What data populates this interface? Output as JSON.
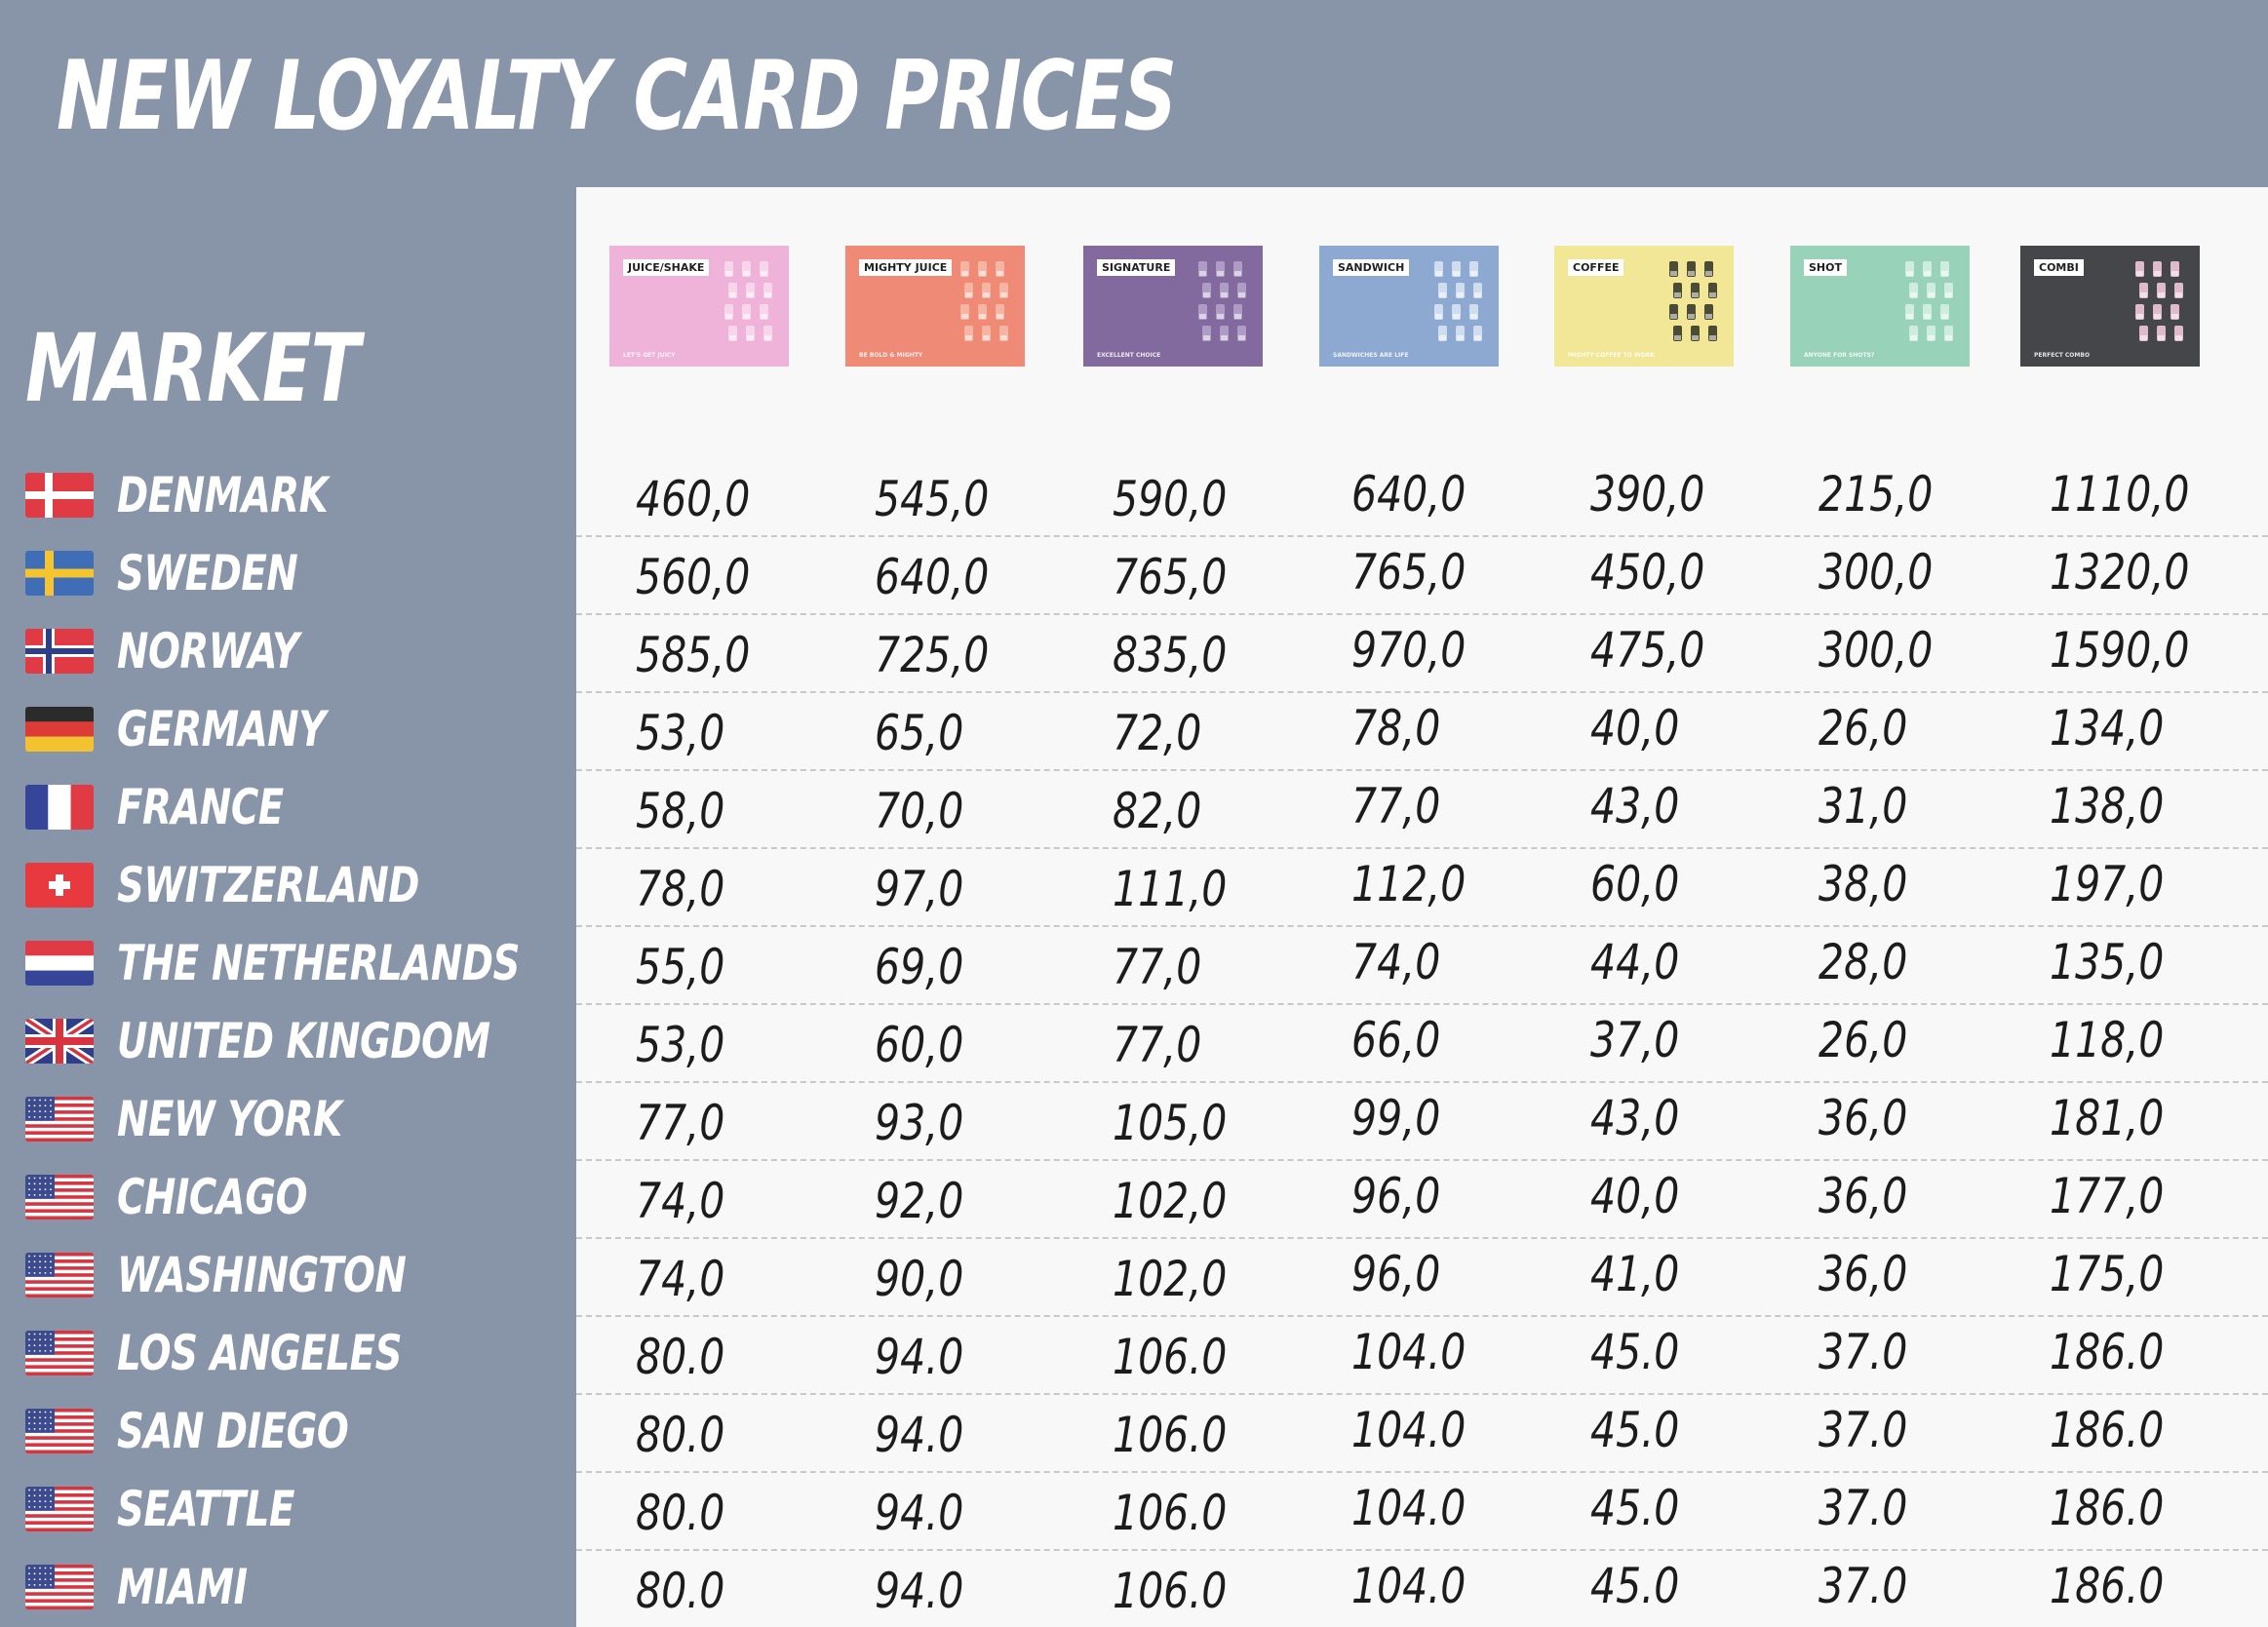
{
  "title": "NEW LOYALTY CARD PRICES",
  "market_heading": "MARKET",
  "cards": [
    {
      "label": "JUICE/SHAKE",
      "slogan": "LET'S GET JUICY",
      "color": "#efb3d9",
      "icon": "juice-cups-icon",
      "decor": "#f7d9ec"
    },
    {
      "label": "MIGHTY JUICE",
      "slogan": "BE BOLD & MIGHTY",
      "color": "#ee8a75",
      "icon": "juice-bottles-icon",
      "decor": "#f6b8a8"
    },
    {
      "label": "SIGNATURE",
      "slogan": "EXCELLENT CHOICE",
      "color": "#836a9e",
      "icon": "signature-cups-icon",
      "decor": "#b4a2c8"
    },
    {
      "label": "SANDWICH",
      "slogan": "SANDWICHES ARE LIFE",
      "color": "#8da9d1",
      "icon": "sandwich-icon",
      "decor": "#d7e2f1"
    },
    {
      "label": "COFFEE",
      "slogan": "MIGHTY COFFEE TO WORK",
      "color": "#f1e797",
      "icon": "coffee-cups-icon",
      "decor": "#3a3a2a"
    },
    {
      "label": "SHOT",
      "slogan": "ANYONE FOR SHOTS?",
      "color": "#98d2b9",
      "icon": "shot-glasses-icon",
      "decor": "#d4efe3"
    },
    {
      "label": "COMBI",
      "slogan": "PERFECT COMBO",
      "color": "#444649",
      "icon": "combo-icon",
      "decor": "#f0c7d9"
    }
  ],
  "markets": [
    {
      "name": "DENMARK",
      "flag": "denmark-flag-icon",
      "prices": [
        "460,0",
        "545,0",
        "590,0",
        "640,0",
        "390,0",
        "215,0",
        "1110,0"
      ]
    },
    {
      "name": "SWEDEN",
      "flag": "sweden-flag-icon",
      "prices": [
        "560,0",
        "640,0",
        "765,0",
        "765,0",
        "450,0",
        "300,0",
        "1320,0"
      ]
    },
    {
      "name": "NORWAY",
      "flag": "norway-flag-icon",
      "prices": [
        "585,0",
        "725,0",
        "835,0",
        "970,0",
        "475,0",
        "300,0",
        "1590,0"
      ]
    },
    {
      "name": "GERMANY",
      "flag": "germany-flag-icon",
      "prices": [
        "53,0",
        "65,0",
        "72,0",
        "78,0",
        "40,0",
        "26,0",
        "134,0"
      ]
    },
    {
      "name": "FRANCE",
      "flag": "france-flag-icon",
      "prices": [
        "58,0",
        "70,0",
        "82,0",
        "77,0",
        "43,0",
        "31,0",
        "138,0"
      ]
    },
    {
      "name": "SWITZERLAND",
      "flag": "switzerland-flag-icon",
      "prices": [
        "78,0",
        "97,0",
        "111,0",
        "112,0",
        "60,0",
        "38,0",
        "197,0"
      ]
    },
    {
      "name": "THE NETHERLANDS",
      "flag": "netherlands-flag-icon",
      "prices": [
        "55,0",
        "69,0",
        "77,0",
        "74,0",
        "44,0",
        "28,0",
        "135,0"
      ]
    },
    {
      "name": "UNITED KINGDOM",
      "flag": "uk-flag-icon",
      "prices": [
        "53,0",
        "60,0",
        "77,0",
        "66,0",
        "37,0",
        "26,0",
        "118,0"
      ]
    },
    {
      "name": "NEW YORK",
      "flag": "usa-flag-icon",
      "prices": [
        "77,0",
        "93,0",
        "105,0",
        "99,0",
        "43,0",
        "36,0",
        "181,0"
      ]
    },
    {
      "name": "CHICAGO",
      "flag": "usa-flag-icon",
      "prices": [
        "74,0",
        "92,0",
        "102,0",
        "96,0",
        "40,0",
        "36,0",
        "177,0"
      ]
    },
    {
      "name": "WASHINGTON",
      "flag": "usa-flag-icon",
      "prices": [
        "74,0",
        "90,0",
        "102,0",
        "96,0",
        "41,0",
        "36,0",
        "175,0"
      ]
    },
    {
      "name": "LOS ANGELES",
      "flag": "usa-flag-icon",
      "prices": [
        "80.0",
        "94.0",
        "106.0",
        "104.0",
        "45.0",
        "37.0",
        "186.0"
      ]
    },
    {
      "name": "SAN DIEGO",
      "flag": "usa-flag-icon",
      "prices": [
        "80.0",
        "94.0",
        "106.0",
        "104.0",
        "45.0",
        "37.0",
        "186.0"
      ]
    },
    {
      "name": "SEATTLE",
      "flag": "usa-flag-icon",
      "prices": [
        "80.0",
        "94.0",
        "106.0",
        "104.0",
        "45.0",
        "37.0",
        "186.0"
      ]
    },
    {
      "name": "MIAMI",
      "flag": "usa-flag-icon",
      "prices": [
        "80.0",
        "94.0",
        "106.0",
        "104.0",
        "45.0",
        "37.0",
        "186.0"
      ]
    }
  ]
}
